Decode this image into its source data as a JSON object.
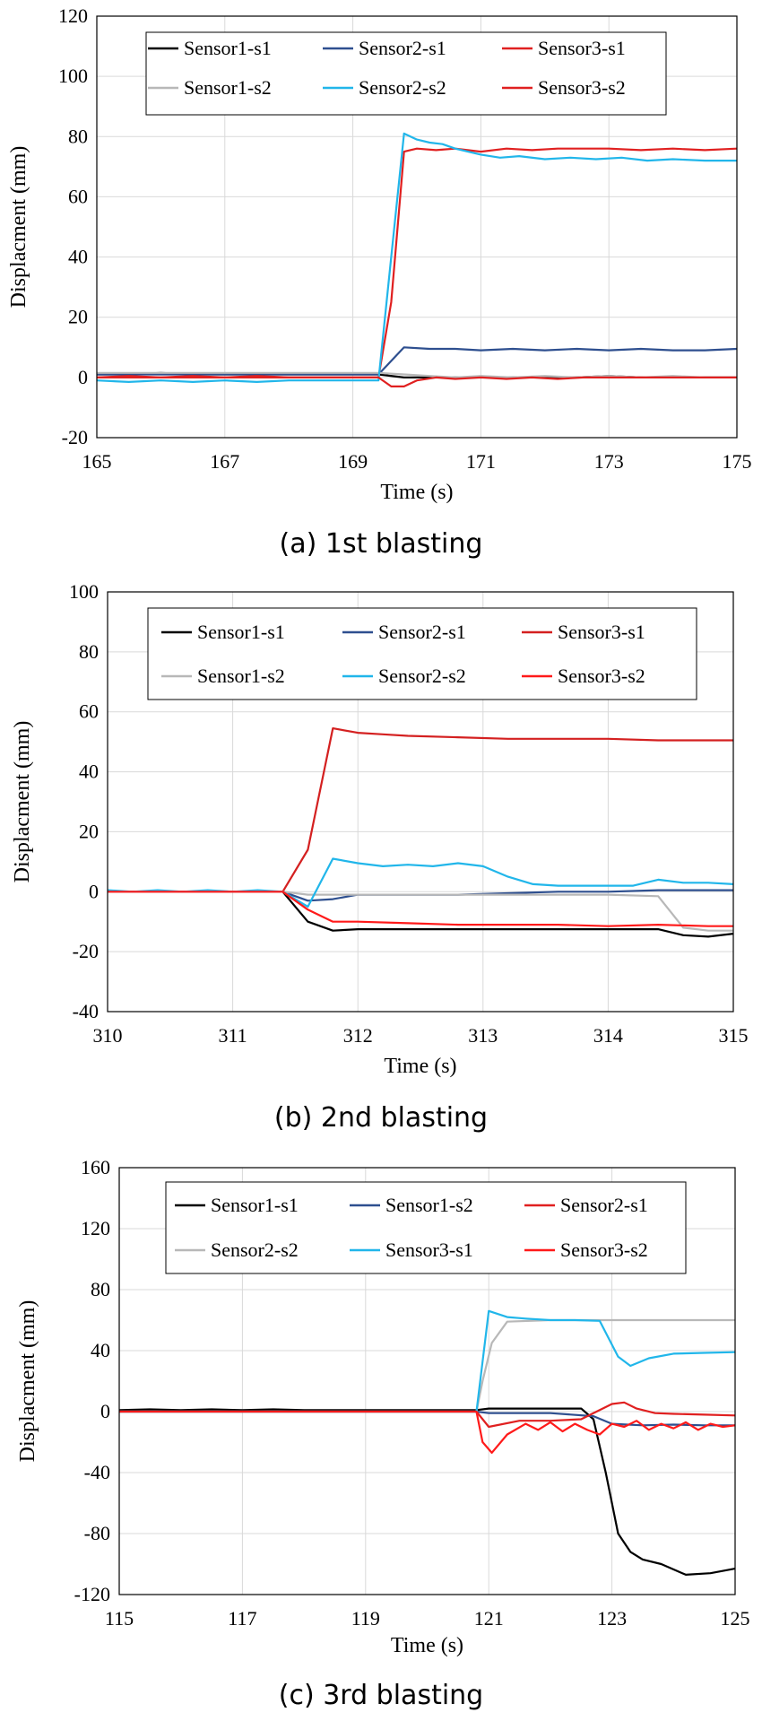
{
  "chart_data": [
    {
      "type": "line",
      "title": "",
      "caption": "(a) 1st blasting",
      "xlabel": "Time (s)",
      "ylabel": "Displacment (mm)",
      "xlim": [
        165,
        175
      ],
      "ylim": [
        -20,
        120
      ],
      "xticks": [
        165,
        167,
        169,
        171,
        173,
        175
      ],
      "yticks": [
        -20,
        0,
        20,
        40,
        60,
        80,
        100,
        120
      ],
      "legend_position": "top",
      "series": [
        {
          "name": "Sensor1-s1",
          "color": "#000000",
          "x": [
            165,
            165.5,
            166,
            166.5,
            167,
            167.5,
            168,
            168.5,
            169,
            169.4,
            169.8,
            170.2,
            170.6,
            171,
            171.5,
            172,
            172.5,
            173,
            173.5,
            174,
            174.5,
            175
          ],
          "y": [
            1,
            1,
            1.5,
            1,
            1,
            1,
            1,
            1,
            1,
            1,
            0,
            0,
            0,
            0,
            0,
            0,
            0,
            0.5,
            0,
            0,
            0,
            0
          ]
        },
        {
          "name": "Sensor2-s1",
          "color": "#2e4f8f",
          "x": [
            165,
            169.4,
            169.8,
            170.2,
            170.6,
            171,
            171.5,
            172,
            172.5,
            173,
            173.5,
            174,
            174.5,
            175
          ],
          "y": [
            1,
            1,
            10,
            9.5,
            9.5,
            9,
            9.5,
            9,
            9.5,
            9,
            9.5,
            9,
            9,
            9.5
          ]
        },
        {
          "name": "Sensor3-s1",
          "color": "#e02020",
          "x": [
            165,
            169.4,
            169.6,
            169.8,
            170,
            170.3,
            170.6,
            171,
            171.4,
            171.8,
            172.2,
            172.6,
            173,
            173.5,
            174,
            174.5,
            175
          ],
          "y": [
            0,
            0,
            25,
            75,
            76,
            75.5,
            76,
            75,
            76,
            75.5,
            76,
            76,
            76,
            75.5,
            76,
            75.5,
            76
          ]
        },
        {
          "name": "Sensor1-s2",
          "color": "#b8b8b8",
          "x": [
            165,
            169.4,
            169.8,
            170.2,
            170.6,
            171,
            171.5,
            172,
            172.5,
            173,
            173.5,
            174,
            174.5,
            175
          ],
          "y": [
            1.5,
            1.5,
            1,
            0.5,
            0,
            0.5,
            0,
            0.5,
            0,
            0.5,
            0,
            0.5,
            0,
            0
          ]
        },
        {
          "name": "Sensor2-s2",
          "color": "#21b6ea",
          "x": [
            165,
            165.5,
            166,
            166.5,
            167,
            167.5,
            168,
            168.5,
            169,
            169.4,
            169.6,
            169.8,
            170,
            170.2,
            170.4,
            170.6,
            171,
            171.3,
            171.6,
            172,
            172.4,
            172.8,
            173.2,
            173.6,
            174,
            174.5,
            175
          ],
          "y": [
            -1,
            -1.5,
            -1,
            -1.5,
            -1,
            -1.5,
            -1,
            -1,
            -1,
            -1,
            40,
            81,
            79,
            78,
            77.5,
            76,
            74,
            73,
            73.5,
            72.5,
            73,
            72.5,
            73,
            72,
            72.5,
            72,
            72
          ]
        },
        {
          "name": "Sensor3-s2",
          "color": "#e02020",
          "x": [
            165,
            165.5,
            166,
            166.5,
            167,
            167.5,
            168,
            168.5,
            169,
            169.4,
            169.6,
            169.8,
            170,
            170.3,
            170.6,
            171,
            171.4,
            171.8,
            172.2,
            172.6,
            173,
            173.5,
            174,
            174.5,
            175
          ],
          "y": [
            0,
            0.5,
            0,
            0.5,
            0,
            0.5,
            0,
            0,
            0,
            0,
            -3,
            -3,
            -1,
            0,
            -0.5,
            0,
            -0.5,
            0,
            -0.5,
            0,
            0,
            0,
            0,
            0,
            0
          ]
        }
      ]
    },
    {
      "type": "line",
      "title": "",
      "caption": "(b) 2nd blasting",
      "xlabel": "Time (s)",
      "ylabel": "Displacment (mm)",
      "xlim": [
        310,
        315
      ],
      "ylim": [
        -40,
        100
      ],
      "xticks": [
        310,
        311,
        312,
        313,
        314,
        315
      ],
      "yticks": [
        -40,
        -20,
        0,
        20,
        40,
        60,
        80,
        100
      ],
      "legend_position": "top",
      "series": [
        {
          "name": "Sensor1-s1",
          "color": "#000000",
          "x": [
            310,
            311.4,
            311.6,
            311.8,
            312,
            312.4,
            312.8,
            313.2,
            313.6,
            314,
            314.4,
            314.6,
            314.8,
            315
          ],
          "y": [
            0,
            0,
            -10,
            -13,
            -12.5,
            -12.5,
            -12.5,
            -12.5,
            -12.5,
            -12.5,
            -12.5,
            -14.5,
            -15,
            -14
          ]
        },
        {
          "name": "Sensor2-s1",
          "color": "#2e4f8f",
          "x": [
            310,
            311.4,
            311.6,
            311.8,
            312,
            312.4,
            312.8,
            313.2,
            313.6,
            314,
            314.4,
            314.8,
            315
          ],
          "y": [
            0,
            0,
            -3,
            -2.5,
            -1,
            -1,
            -1,
            -0.5,
            0,
            0,
            0.5,
            0.5,
            0.5
          ]
        },
        {
          "name": "Sensor3-s1",
          "color": "#d42020",
          "x": [
            310,
            311.4,
            311.6,
            311.8,
            312,
            312.2,
            312.4,
            312.8,
            313.2,
            313.6,
            314,
            314.4,
            314.8,
            315
          ],
          "y": [
            0,
            0,
            14,
            54.5,
            53,
            52.5,
            52,
            51.5,
            51,
            51,
            51,
            50.5,
            50.5,
            50.5
          ]
        },
        {
          "name": "Sensor1-s2",
          "color": "#b8b8b8",
          "x": [
            310,
            311.4,
            311.6,
            311.8,
            312,
            312.4,
            312.8,
            313.2,
            313.6,
            314,
            314.4,
            314.6,
            314.8,
            315
          ],
          "y": [
            0,
            0,
            -1,
            -1,
            -1,
            -1,
            -1,
            -1,
            -1,
            -1,
            -1.5,
            -12,
            -13,
            -13
          ]
        },
        {
          "name": "Sensor2-s2",
          "color": "#21b6ea",
          "x": [
            310,
            310.2,
            310.4,
            310.6,
            310.8,
            311,
            311.2,
            311.4,
            311.6,
            311.8,
            312,
            312.2,
            312.4,
            312.6,
            312.8,
            313,
            313.2,
            313.4,
            313.6,
            313.8,
            314,
            314.2,
            314.4,
            314.6,
            314.8,
            315
          ],
          "y": [
            0.5,
            0,
            0.5,
            0,
            0.5,
            0,
            0.5,
            0,
            -5,
            11,
            9.5,
            8.5,
            9,
            8.5,
            9.5,
            8.5,
            5,
            2.5,
            2,
            2,
            2,
            2,
            4,
            3,
            3,
            2.5
          ]
        },
        {
          "name": "Sensor3-s2",
          "color": "#ff1a1a",
          "x": [
            310,
            310.8,
            311,
            311.4,
            311.6,
            311.8,
            312,
            312.4,
            312.8,
            313.2,
            313.6,
            314,
            314.4,
            314.8,
            315
          ],
          "y": [
            0,
            0,
            0,
            0,
            -6,
            -10,
            -10,
            -10.5,
            -11,
            -11,
            -11,
            -11.5,
            -11,
            -11.5,
            -11.5
          ]
        }
      ]
    },
    {
      "type": "line",
      "title": "",
      "caption": "(c) 3rd blasting",
      "xlabel": "Time (s)",
      "ylabel": "Displacment (mm)",
      "xlim": [
        115,
        125
      ],
      "ylim": [
        -120,
        160
      ],
      "xticks": [
        115,
        117,
        119,
        121,
        123,
        125
      ],
      "yticks": [
        -120,
        -80,
        -40,
        0,
        40,
        80,
        120,
        160
      ],
      "legend_position": "top",
      "series": [
        {
          "name": "Sensor1-s1",
          "color": "#000000",
          "x": [
            115,
            115.5,
            116,
            116.5,
            117,
            117.5,
            118,
            120.8,
            121,
            122.5,
            122.7,
            122.9,
            123.1,
            123.3,
            123.5,
            123.8,
            124.2,
            124.6,
            125
          ],
          "y": [
            1,
            1.5,
            1,
            1.5,
            1,
            1.5,
            1,
            1,
            2,
            2,
            -5,
            -40,
            -80,
            -92,
            -97,
            -100,
            -107,
            -106,
            -103
          ]
        },
        {
          "name": "Sensor1-s2",
          "color": "#2e4f8f",
          "x": [
            115,
            120.8,
            121,
            122,
            122.7,
            123,
            123.5,
            124,
            124.5,
            125
          ],
          "y": [
            0,
            0,
            -1,
            -1,
            -3,
            -8,
            -9,
            -8.5,
            -9,
            -9
          ]
        },
        {
          "name": "Sensor2-s1",
          "color": "#e02020",
          "x": [
            115,
            120.8,
            121,
            121.5,
            122,
            122.5,
            123,
            123.2,
            123.4,
            123.7,
            124,
            124.5,
            125
          ],
          "y": [
            0,
            0,
            -10,
            -6,
            -6,
            -5,
            5,
            6,
            2,
            -1,
            -1.5,
            -2,
            -2.5
          ]
        },
        {
          "name": "Sensor2-s2",
          "color": "#b8b8b8",
          "x": [
            115,
            120.8,
            120.9,
            121.05,
            121.3,
            122,
            123,
            124,
            125
          ],
          "y": [
            0,
            0,
            20,
            45,
            59,
            60,
            60,
            60,
            60
          ]
        },
        {
          "name": "Sensor3-s1",
          "color": "#21b6ea",
          "x": [
            115,
            120.8,
            121,
            121.3,
            121.6,
            122,
            122.4,
            122.8,
            123.1,
            123.3,
            123.6,
            124,
            124.5,
            125
          ],
          "y": [
            0,
            0,
            66,
            62,
            61,
            60,
            60,
            59.5,
            36,
            30,
            35,
            38,
            38.5,
            39
          ]
        },
        {
          "name": "Sensor3-s2",
          "color": "#ff1a1a",
          "x": [
            115,
            120.8,
            120.9,
            121.05,
            121.3,
            121.6,
            121.8,
            122,
            122.2,
            122.4,
            122.6,
            122.8,
            123,
            123.2,
            123.4,
            123.6,
            123.8,
            124,
            124.2,
            124.4,
            124.6,
            124.8,
            125
          ],
          "y": [
            0,
            0,
            -20,
            -27,
            -15,
            -8,
            -12,
            -7,
            -13,
            -8,
            -12,
            -15,
            -8,
            -10,
            -6,
            -12,
            -8,
            -11,
            -7,
            -12,
            -8,
            -10,
            -9
          ]
        }
      ]
    }
  ]
}
